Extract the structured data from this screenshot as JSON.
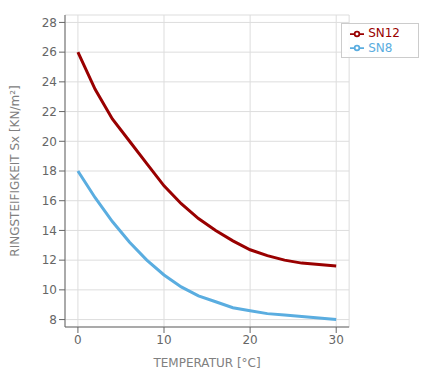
{
  "chart_data": {
    "type": "line",
    "xlabel": "TEMPERATUR [°C]",
    "ylabel": "RINGSTEIFIGKEIT Sx [KN/m²]",
    "x": [
      0,
      2,
      4,
      6,
      8,
      10,
      12,
      14,
      16,
      18,
      20,
      22,
      24,
      26,
      28,
      30
    ],
    "series": [
      {
        "name": "SN8",
        "color": "#5aade0",
        "values": [
          18.0,
          16.2,
          14.6,
          13.2,
          12.0,
          11.0,
          10.2,
          9.6,
          9.2,
          8.8,
          8.6,
          8.4,
          8.3,
          8.2,
          8.1,
          8.0
        ]
      },
      {
        "name": "SN12",
        "color": "#990000",
        "values": [
          26.0,
          23.5,
          21.5,
          20.0,
          18.5,
          17.0,
          15.8,
          14.8,
          14.0,
          13.3,
          12.7,
          12.3,
          12.0,
          11.8,
          11.7,
          11.6
        ]
      }
    ],
    "xlim": [
      -1.5,
      31.5
    ],
    "ylim": [
      7.5,
      28.5
    ],
    "xticks": [
      0,
      10,
      20,
      30
    ],
    "yticks": [
      8,
      10,
      12,
      14,
      16,
      18,
      20,
      22,
      24,
      26,
      28
    ],
    "grid": true,
    "legend": "upper right"
  }
}
